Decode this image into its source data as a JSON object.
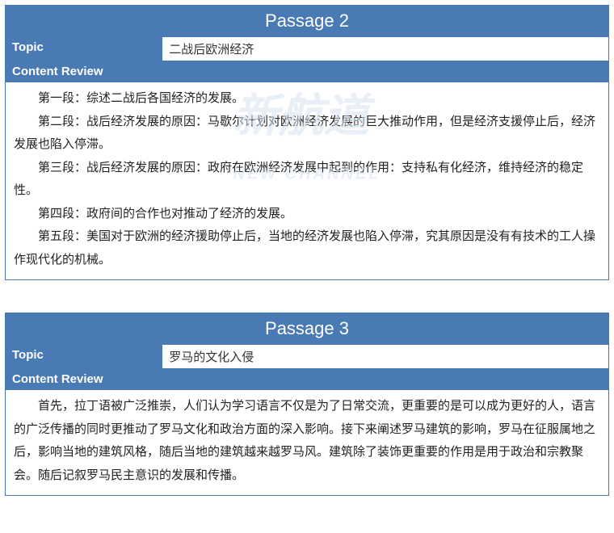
{
  "colors": {
    "header_bg": "#4a7ab3",
    "header_text": "#ffffff",
    "border": "#4a7ab3",
    "content_text": "#222222",
    "watermark": "#d6e2ef"
  },
  "typography": {
    "title_fontsize": 22,
    "label_fontsize": 15,
    "body_fontsize": 15,
    "line_height": 1.9
  },
  "watermark": {
    "main": "新航道",
    "sub": "NEW CHANNEL"
  },
  "passage2": {
    "title": "Passage 2",
    "topic_label": "Topic",
    "topic_value": "二战后欧洲经济",
    "review_label": "Content Review",
    "paragraphs": [
      "第一段：综述二战后各国经济的发展。",
      "第二段：战后经济发展的原因：马歇尔计划对欧洲经济发展的巨大推动作用，但是经济支援停止后，经济发展也陷入停滞。",
      "第三段：战后经济发展的原因：政府在欧洲经济发展中起到的作用：支持私有化经济，维持经济的稳定性。",
      "第四段：政府间的合作也对推动了经济的发展。",
      "第五段：美国对于欧洲的经济援助停止后，当地的经济发展也陷入停滞，究其原因是没有有技术的工人操作现代化的机械。"
    ]
  },
  "passage3": {
    "title": "Passage 3",
    "topic_label": "Topic",
    "topic_value": "罗马的文化入侵",
    "review_label": "Content Review",
    "paragraphs": [
      "首先，拉丁语被广泛推崇，人们认为学习语言不仅是为了日常交流，更重要的是可以成为更好的人，语言的广泛传播的同时更推动了罗马文化和政治方面的深入影响。接下来阐述罗马建筑的影响，罗马在征服属地之后，影响当地的建筑风格，随后当地的建筑越来越罗马风。建筑除了装饰更重要的作用是用于政治和宗教聚会。随后记叙罗马民主意识的发展和传播。"
    ]
  }
}
